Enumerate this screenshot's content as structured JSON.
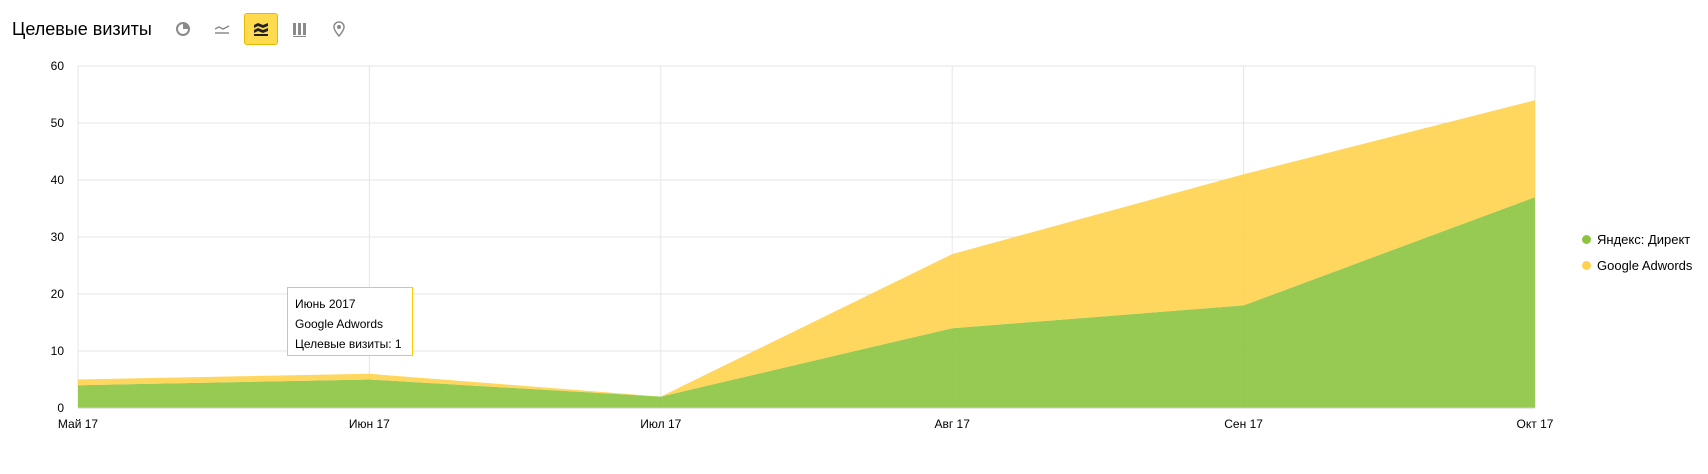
{
  "header": {
    "title": "Целевые визиты"
  },
  "toolbar": {
    "buttons": [
      {
        "icon": "pie-chart-icon",
        "active": false
      },
      {
        "icon": "line-chart-icon",
        "active": false
      },
      {
        "icon": "area-chart-icon",
        "active": true
      },
      {
        "icon": "bar-chart-icon",
        "active": false
      },
      {
        "icon": "map-pin-icon",
        "active": false
      }
    ]
  },
  "tooltip": {
    "date": "Июнь 2017",
    "series": "Google Adwords",
    "value_text": "Целевые визиты: 1"
  },
  "chart_data": {
    "type": "area",
    "stacked": true,
    "categories": [
      "Май 17",
      "Июн 17",
      "Июл 17",
      "Авг 17",
      "Сен 17",
      "Окт 17"
    ],
    "series": [
      {
        "name": "Яндекс: Директ",
        "color": "#8cc43f",
        "values": [
          4,
          5,
          2,
          14,
          18,
          37
        ]
      },
      {
        "name": "Google Adwords",
        "color": "#ffd24d",
        "values": [
          1,
          1,
          0,
          13,
          23,
          17
        ]
      }
    ],
    "ylim": [
      0,
      60
    ],
    "yticks": [
      0,
      10,
      20,
      30,
      40,
      50,
      60
    ],
    "grid": true,
    "legend_position": "right"
  }
}
